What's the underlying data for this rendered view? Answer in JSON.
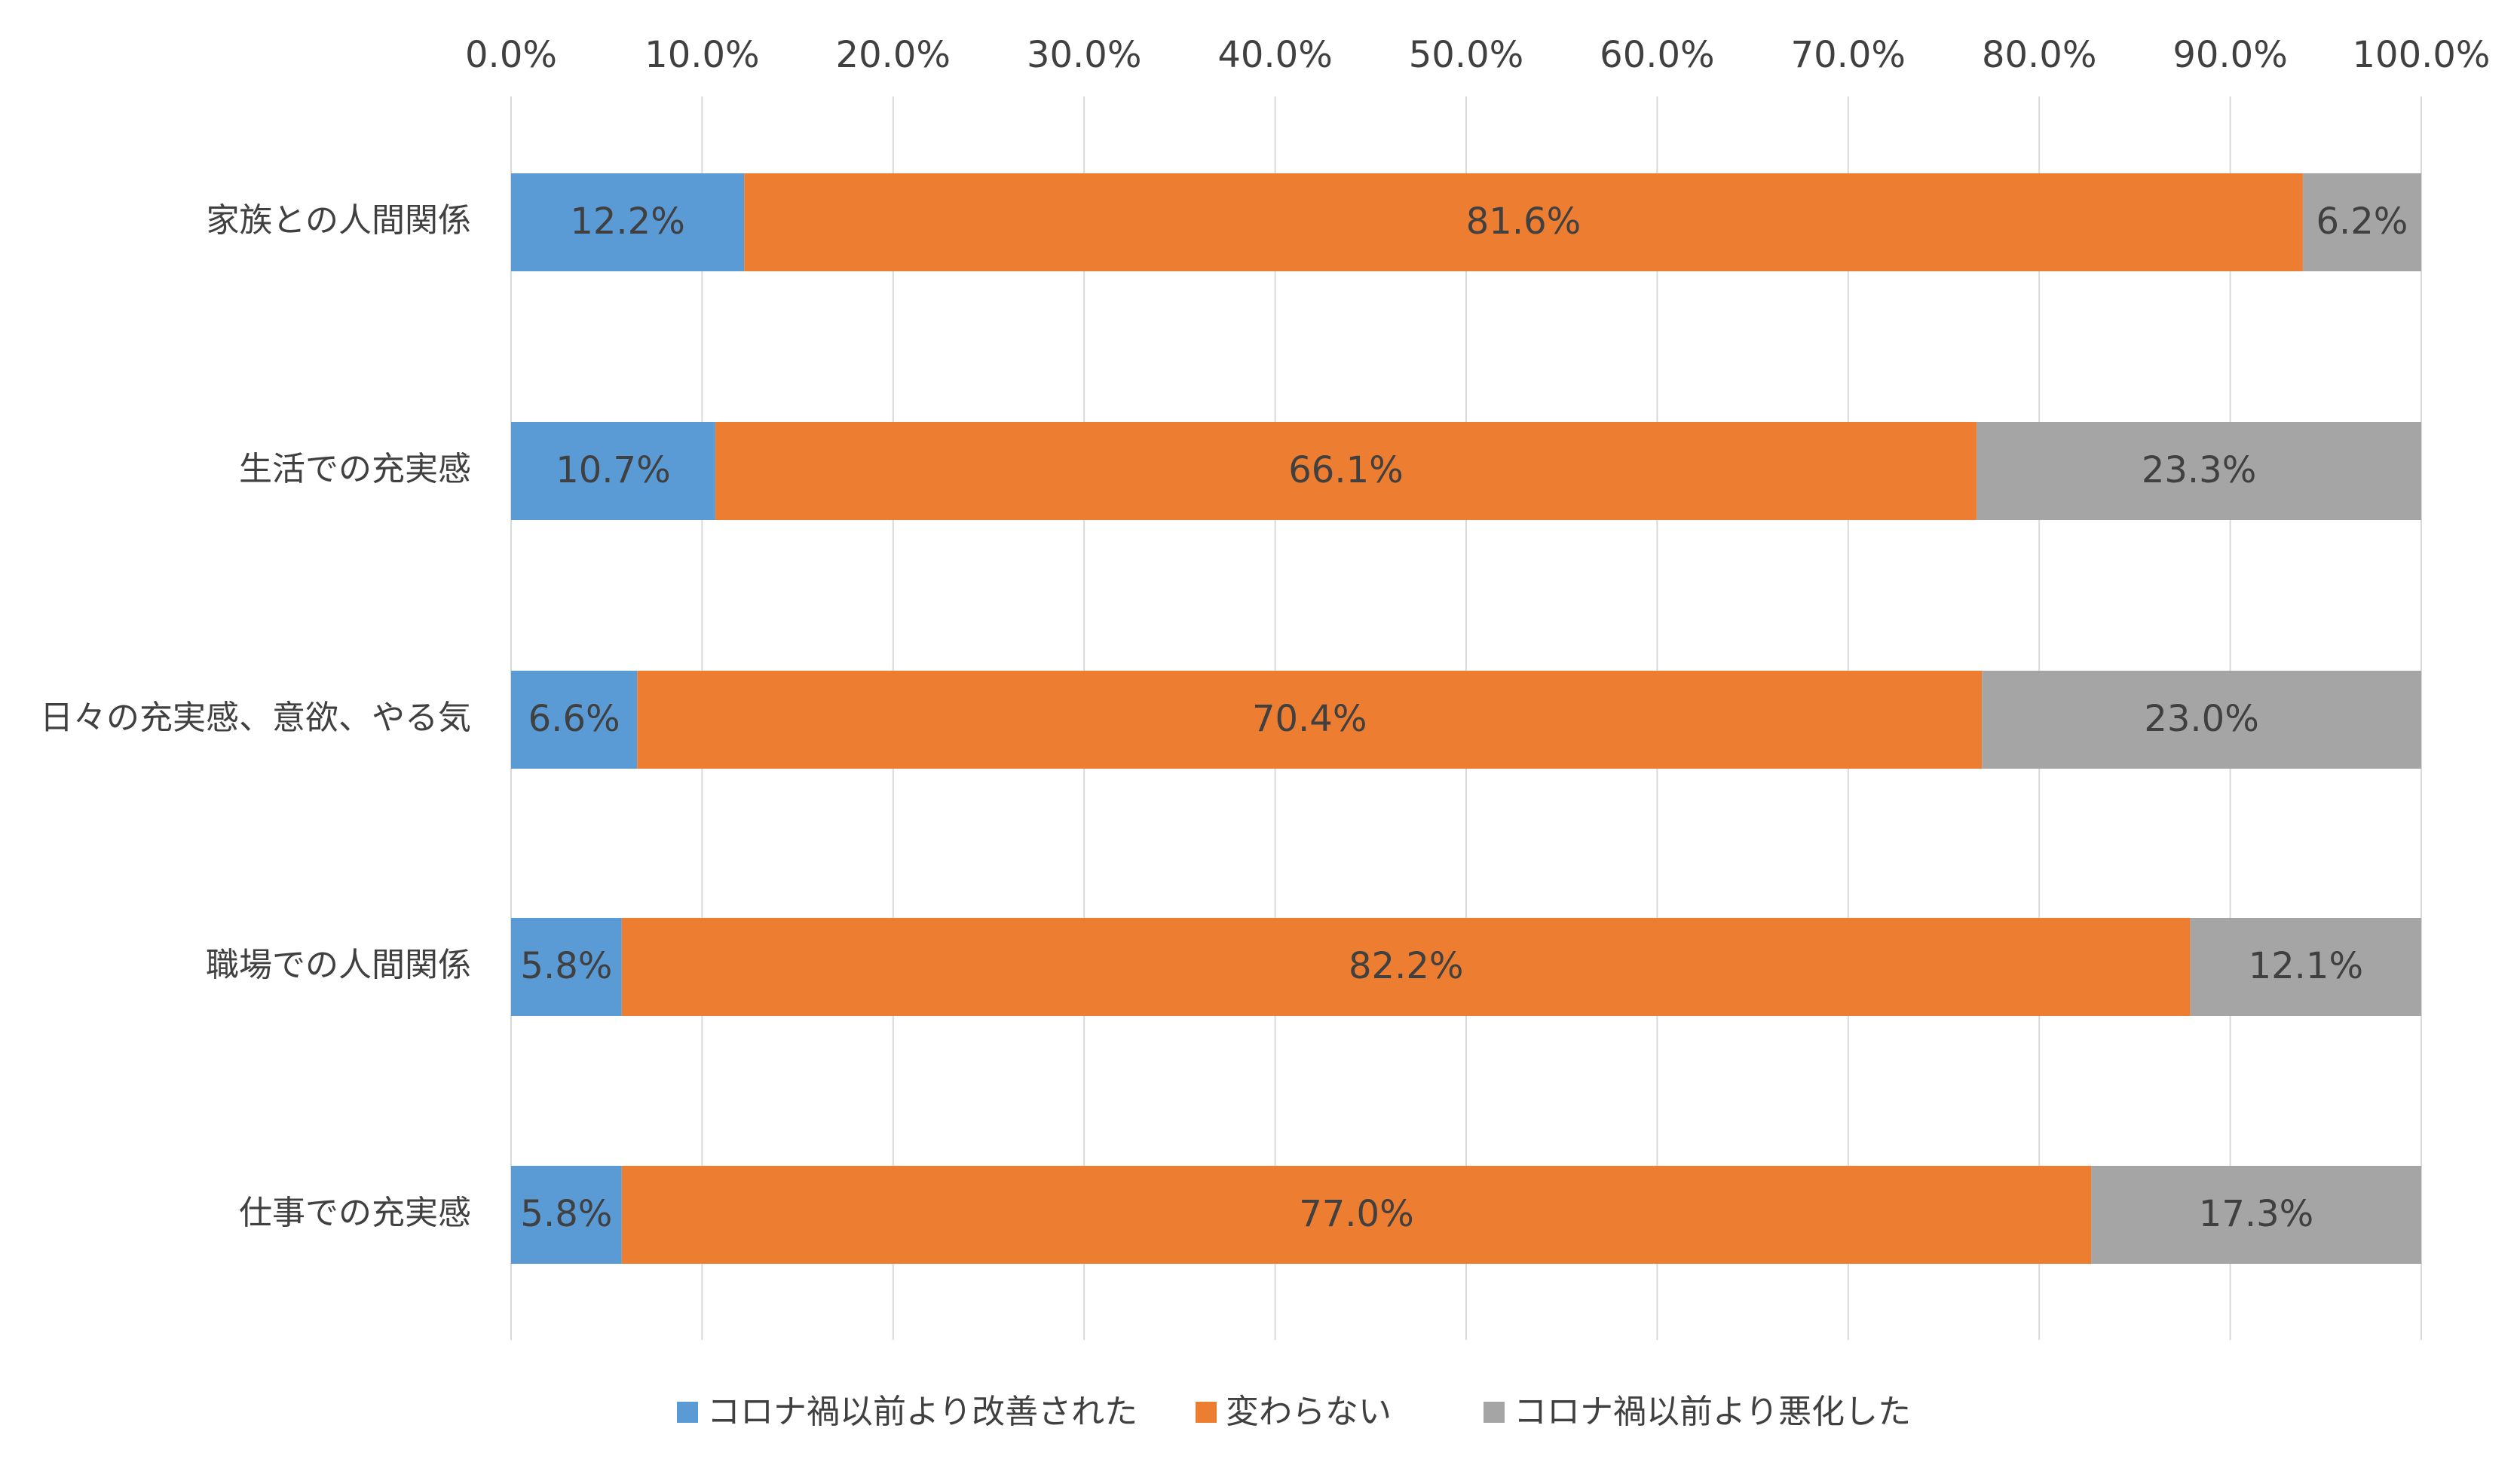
{
  "chart_data": {
    "type": "bar",
    "orientation": "horizontal",
    "stacked": true,
    "normalized_100_percent": true,
    "categories": [
      "家族との人間関係",
      "生活での充実感",
      "日々の充実感、意欲、やる気",
      "職場での人間関係",
      "仕事での充実感"
    ],
    "series": [
      {
        "name": "コロナ禍以前より改善された",
        "color": "#5b9bd5",
        "values": [
          12.2,
          10.7,
          6.6,
          5.8,
          5.8
        ],
        "labels": [
          "12.2%",
          "10.7%",
          "6.6%",
          "5.8%",
          "5.8%"
        ]
      },
      {
        "name": "変わらない",
        "color": "#ed7d31",
        "values": [
          81.6,
          66.1,
          70.4,
          82.2,
          77.0
        ],
        "labels": [
          "81.6%",
          "66.1%",
          "70.4%",
          "82.2%",
          "77.0%"
        ]
      },
      {
        "name": "コロナ禍以前より悪化した",
        "color": "#a5a5a5",
        "values": [
          6.2,
          23.3,
          23.0,
          12.1,
          17.3
        ],
        "labels": [
          "6.2%",
          "23.3%",
          "23.0%",
          "12.1%",
          "17.3%"
        ]
      }
    ],
    "x_ticks": [
      "0.0%",
      "10.0%",
      "20.0%",
      "30.0%",
      "40.0%",
      "50.0%",
      "60.0%",
      "70.0%",
      "80.0%",
      "90.0%",
      "100.0%"
    ],
    "xlim": [
      0,
      100
    ],
    "x_axis_position": "top",
    "grid": true,
    "legend_position": "bottom",
    "label_color": "#404040",
    "grid_color": "#d9d9d9"
  }
}
